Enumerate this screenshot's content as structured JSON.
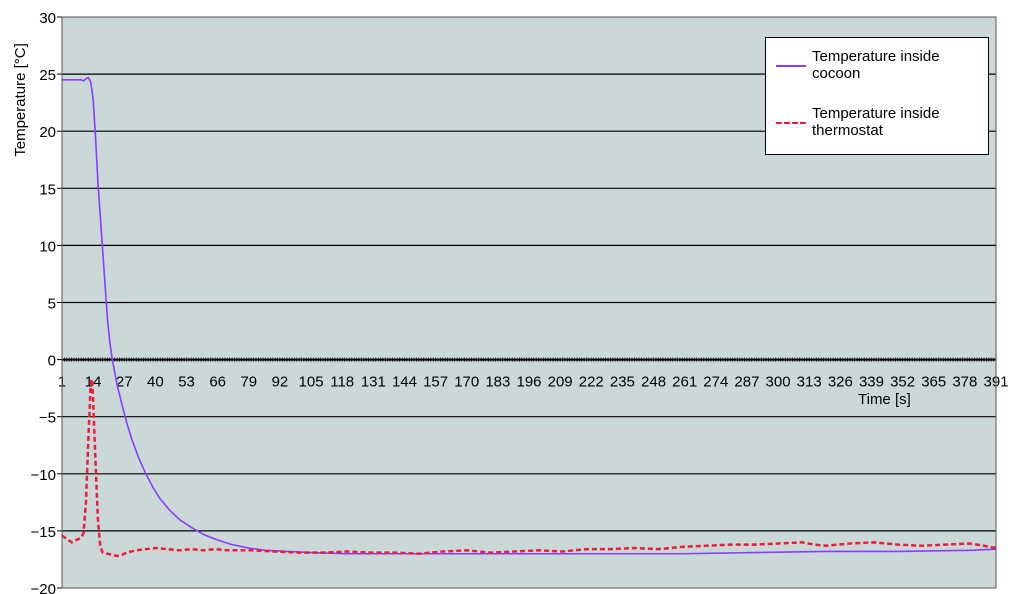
{
  "chart_data": {
    "type": "line",
    "title": "",
    "xlabel": "Time [s]",
    "ylabel": "Temperature [°C]",
    "ylim": [
      -20,
      30
    ],
    "yticks": [
      -20,
      -15,
      -10,
      -5,
      0,
      5,
      10,
      15,
      20,
      25,
      30
    ],
    "xlim": [
      1,
      391
    ],
    "xticks": [
      1,
      14,
      27,
      40,
      53,
      66,
      79,
      92,
      105,
      118,
      131,
      144,
      157,
      170,
      183,
      196,
      209,
      222,
      235,
      248,
      261,
      274,
      287,
      300,
      313,
      326,
      339,
      352,
      365,
      378,
      391
    ],
    "grid": true,
    "legend_position": "top-right",
    "plot_background": "#cad9d7",
    "series": [
      {
        "name": "Temperature inside cocoon",
        "color": "#8a3dff",
        "style": "solid",
        "points": [
          [
            1,
            24.5
          ],
          [
            9,
            24.5
          ],
          [
            10,
            24.4
          ],
          [
            11,
            24.6
          ],
          [
            12,
            24.7
          ],
          [
            13,
            24.3
          ],
          [
            14,
            22.8
          ],
          [
            15,
            19.5
          ],
          [
            16,
            15.5
          ],
          [
            17,
            12.5
          ],
          [
            18,
            9.5
          ],
          [
            19,
            6.5
          ],
          [
            20,
            3.5
          ],
          [
            21,
            1.5
          ],
          [
            22,
            0.0
          ],
          [
            24,
            -2.2
          ],
          [
            26,
            -3.9
          ],
          [
            28,
            -5.5
          ],
          [
            30,
            -6.9
          ],
          [
            33,
            -8.6
          ],
          [
            36,
            -10.0
          ],
          [
            39,
            -11.2
          ],
          [
            42,
            -12.2
          ],
          [
            46,
            -13.2
          ],
          [
            50,
            -14.0
          ],
          [
            55,
            -14.7
          ],
          [
            60,
            -15.3
          ],
          [
            66,
            -15.8
          ],
          [
            72,
            -16.2
          ],
          [
            79,
            -16.5
          ],
          [
            86,
            -16.7
          ],
          [
            95,
            -16.8
          ],
          [
            105,
            -16.9
          ],
          [
            120,
            -17.0
          ],
          [
            140,
            -17.0
          ],
          [
            170,
            -17.0
          ],
          [
            200,
            -17.0
          ],
          [
            230,
            -17.0
          ],
          [
            260,
            -17.0
          ],
          [
            290,
            -16.9
          ],
          [
            320,
            -16.8
          ],
          [
            350,
            -16.8
          ],
          [
            380,
            -16.7
          ],
          [
            391,
            -16.6
          ]
        ]
      },
      {
        "name": "Temperature inside thermostat",
        "color": "#ee1c3c",
        "style": "dashed",
        "points": [
          [
            1,
            -15.4
          ],
          [
            3,
            -15.7
          ],
          [
            5,
            -16.0
          ],
          [
            7,
            -15.8
          ],
          [
            9,
            -15.6
          ],
          [
            10,
            -15.2
          ],
          [
            11,
            -12.5
          ],
          [
            12,
            -7.0
          ],
          [
            13,
            -2.0
          ],
          [
            13.5,
            -1.7
          ],
          [
            14,
            -3.5
          ],
          [
            15,
            -9.0
          ],
          [
            16,
            -14.0
          ],
          [
            17,
            -16.4
          ],
          [
            18,
            -16.9
          ],
          [
            20,
            -17.0
          ],
          [
            22,
            -17.1
          ],
          [
            24,
            -17.2
          ],
          [
            26,
            -17.1
          ],
          [
            28,
            -16.9
          ],
          [
            30,
            -16.8
          ],
          [
            32,
            -16.7
          ],
          [
            36,
            -16.6
          ],
          [
            40,
            -16.5
          ],
          [
            45,
            -16.6
          ],
          [
            50,
            -16.7
          ],
          [
            55,
            -16.6
          ],
          [
            60,
            -16.7
          ],
          [
            65,
            -16.6
          ],
          [
            70,
            -16.7
          ],
          [
            80,
            -16.7
          ],
          [
            90,
            -16.8
          ],
          [
            100,
            -16.9
          ],
          [
            110,
            -16.9
          ],
          [
            120,
            -16.8
          ],
          [
            130,
            -16.9
          ],
          [
            140,
            -16.9
          ],
          [
            150,
            -17.0
          ],
          [
            160,
            -16.8
          ],
          [
            170,
            -16.7
          ],
          [
            180,
            -16.9
          ],
          [
            190,
            -16.8
          ],
          [
            200,
            -16.7
          ],
          [
            210,
            -16.8
          ],
          [
            220,
            -16.6
          ],
          [
            230,
            -16.6
          ],
          [
            240,
            -16.5
          ],
          [
            250,
            -16.6
          ],
          [
            260,
            -16.4
          ],
          [
            270,
            -16.3
          ],
          [
            280,
            -16.2
          ],
          [
            290,
            -16.2
          ],
          [
            300,
            -16.1
          ],
          [
            310,
            -16.0
          ],
          [
            315,
            -16.2
          ],
          [
            320,
            -16.3
          ],
          [
            330,
            -16.1
          ],
          [
            340,
            -16.0
          ],
          [
            350,
            -16.2
          ],
          [
            360,
            -16.3
          ],
          [
            370,
            -16.2
          ],
          [
            380,
            -16.1
          ],
          [
            386,
            -16.3
          ],
          [
            391,
            -16.5
          ]
        ]
      }
    ]
  }
}
